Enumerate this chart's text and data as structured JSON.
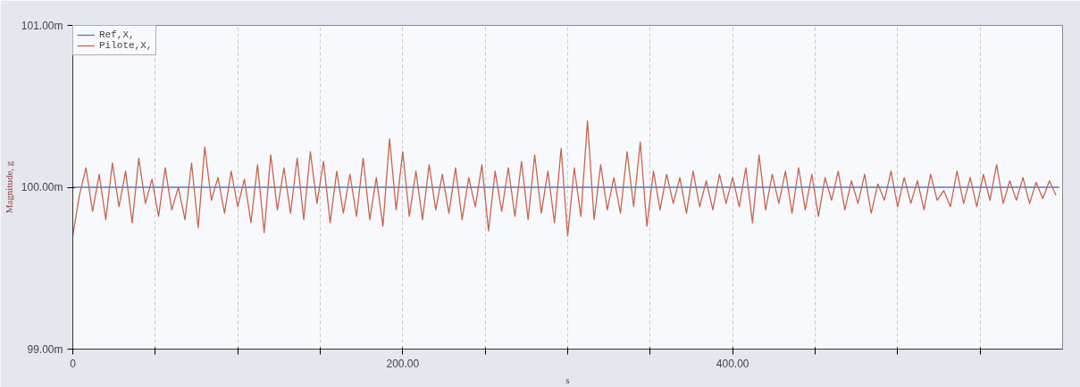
{
  "chart_data": {
    "type": "line",
    "xlabel": "s",
    "ylabel": "Magnitude, g",
    "xlim": [
      0,
      600
    ],
    "xticks": [
      0,
      {
        "value": 50,
        "label": null
      },
      {
        "value": 100,
        "label": null
      },
      {
        "value": 150,
        "label": null
      },
      {
        "value": 200,
        "label": "200.00"
      },
      {
        "value": 250,
        "label": null
      },
      {
        "value": 300,
        "label": null
      },
      {
        "value": 350,
        "label": null
      },
      {
        "value": 400,
        "label": "400.00"
      },
      {
        "value": 450,
        "label": null
      },
      {
        "value": 500,
        "label": null
      },
      {
        "value": 550,
        "label": null
      }
    ],
    "ylim": [
      99,
      101
    ],
    "yticks": [
      {
        "value": 99,
        "label": "99.00m"
      },
      {
        "value": 100,
        "label": "100.00m"
      },
      {
        "value": 101,
        "label": "101.00m"
      }
    ],
    "grid": "x",
    "legend": "top left",
    "marker": "none",
    "line_style": "solid",
    "series": [
      {
        "name": "Ref,X,",
        "color": "#4a7fc0",
        "x": [
          0,
          598
        ],
        "values": [
          100,
          100
        ]
      },
      {
        "name": "Pilote,X,",
        "color": "#c8644e",
        "x": [
          0,
          4,
          8,
          12,
          16,
          20,
          24,
          28,
          32,
          36,
          40,
          44,
          48,
          52,
          56,
          60,
          64,
          68,
          72,
          76,
          80,
          84,
          88,
          92,
          96,
          100,
          104,
          108,
          112,
          116,
          120,
          124,
          128,
          132,
          136,
          140,
          144,
          148,
          152,
          156,
          160,
          164,
          168,
          172,
          176,
          180,
          184,
          188,
          192,
          196,
          200,
          204,
          208,
          212,
          216,
          220,
          224,
          228,
          232,
          236,
          240,
          244,
          248,
          252,
          256,
          260,
          264,
          268,
          272,
          276,
          280,
          284,
          288,
          292,
          296,
          300,
          304,
          308,
          312,
          316,
          320,
          324,
          328,
          332,
          336,
          340,
          344,
          348,
          352,
          356,
          360,
          364,
          368,
          372,
          376,
          380,
          384,
          388,
          392,
          396,
          400,
          404,
          408,
          412,
          416,
          420,
          424,
          428,
          432,
          436,
          440,
          444,
          448,
          452,
          456,
          460,
          464,
          468,
          472,
          476,
          480,
          484,
          488,
          492,
          496,
          500,
          504,
          508,
          512,
          516,
          520,
          524,
          528,
          532,
          536,
          540,
          544,
          548,
          552,
          556,
          560,
          564,
          568,
          572,
          576,
          580,
          584,
          588,
          592,
          596
        ],
        "values": [
          99.7,
          99.95,
          100.12,
          99.85,
          100.08,
          99.8,
          100.15,
          99.88,
          100.1,
          99.78,
          100.18,
          99.9,
          100.05,
          99.82,
          100.12,
          99.86,
          100.0,
          99.8,
          100.15,
          99.75,
          100.25,
          99.92,
          100.06,
          99.84,
          100.1,
          99.88,
          100.05,
          99.78,
          100.14,
          99.72,
          100.2,
          99.86,
          100.12,
          99.84,
          100.18,
          99.8,
          100.22,
          99.9,
          100.16,
          99.78,
          100.1,
          99.84,
          100.08,
          99.82,
          100.18,
          99.8,
          100.06,
          99.76,
          100.3,
          99.86,
          100.22,
          99.82,
          100.1,
          99.8,
          100.14,
          99.86,
          100.08,
          99.84,
          100.12,
          99.8,
          100.06,
          99.88,
          100.14,
          99.73,
          100.1,
          99.85,
          100.12,
          99.82,
          100.16,
          99.8,
          100.2,
          99.84,
          100.1,
          99.78,
          100.24,
          99.7,
          100.12,
          99.82,
          100.41,
          99.8,
          100.14,
          99.86,
          100.06,
          99.84,
          100.22,
          99.88,
          100.28,
          99.76,
          100.1,
          99.86,
          100.08,
          99.9,
          100.06,
          99.84,
          100.1,
          99.88,
          100.04,
          99.86,
          100.08,
          99.9,
          100.06,
          99.88,
          100.12,
          99.78,
          100.2,
          99.86,
          100.08,
          99.9,
          100.1,
          99.84,
          100.12,
          99.86,
          100.08,
          99.82,
          100.06,
          99.92,
          100.1,
          99.86,
          100.04,
          99.9,
          100.08,
          99.84,
          100.02,
          99.92,
          100.1,
          99.88,
          100.06,
          99.9,
          100.04,
          99.86,
          100.08,
          99.92,
          99.98,
          99.88,
          100.1,
          99.9,
          100.06,
          99.88,
          100.08,
          99.92,
          100.14,
          99.9,
          100.04,
          99.92,
          100.06,
          99.9,
          100.03,
          99.93,
          100.04,
          99.95
        ]
      }
    ]
  }
}
